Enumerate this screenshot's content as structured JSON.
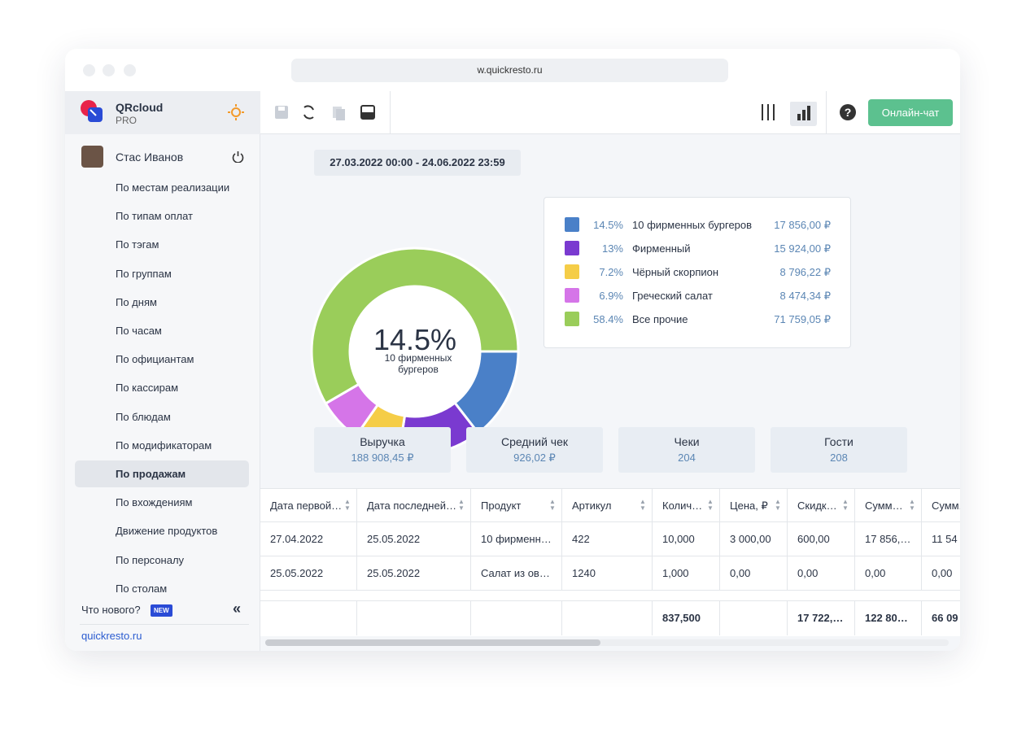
{
  "browser": {
    "url": "w.quickresto.ru"
  },
  "sidebar": {
    "brand": "QRcloud",
    "plan": "PRO",
    "user": "Стас Иванов",
    "menu": [
      "По местам реализации",
      "По типам оплат",
      "По тэгам",
      "По группам",
      "По дням",
      "По часам",
      "По официантам",
      "По кассирам",
      "По блюдам",
      "По модификаторам",
      "По продажам",
      "По вхождениям",
      "Движение продуктов",
      "По персоналу",
      "По столам"
    ],
    "active": 10,
    "whats_new": "Что нового?",
    "badge": "NEW",
    "link": "quickresto.ru"
  },
  "toolbar": {
    "chat_button": "Онлайн-чат"
  },
  "date_range": "27.03.2022 00:00 - 24.06.2022 23:59",
  "chart_data": {
    "type": "pie",
    "donut": true,
    "categories": [
      "10 фирменных бургеров",
      "Фирменный",
      "Чёрный скорпион",
      "Греческий салат",
      "Все прочие"
    ],
    "values": [
      14.5,
      13,
      7.2,
      6.9,
      58.4
    ],
    "value_labels": [
      "14.5%",
      "13%",
      "7.2%",
      "6.9%",
      "58.4%"
    ],
    "colors": [
      "#4a80c8",
      "#7a3ad0",
      "#f5cd47",
      "#d575e8",
      "#9acd5a"
    ],
    "amounts": [
      "17 856,00 ₽",
      "15 924,00 ₽",
      "8 796,22 ₽",
      "8 474,34 ₽",
      "71 759,05 ₽"
    ]
  },
  "kpis": [
    {
      "label": "Выручка",
      "value": "188 908,45 ₽"
    },
    {
      "label": "Средний чек",
      "value": "926,02 ₽"
    },
    {
      "label": "Чеки",
      "value": "204"
    },
    {
      "label": "Гости",
      "value": "208"
    }
  ],
  "table": {
    "columns": [
      "Дата первой…",
      "Дата последней…",
      "Продукт",
      "Артикул",
      "Колич…",
      "Цена, ₽",
      "Скидк…",
      "Сумм…",
      "Сумм."
    ],
    "rows": [
      [
        "27.04.2022",
        "25.05.2022",
        "10 фирменн…",
        "422",
        "10,000",
        "3 000,00",
        "600,00",
        "17 856,…",
        "11 54"
      ],
      [
        "25.05.2022",
        "25.05.2022",
        "Салат из ов…",
        "1240",
        "1,000",
        "0,00",
        "0,00",
        "0,00",
        "0,00"
      ]
    ],
    "totals": [
      null,
      null,
      null,
      null,
      "837,500",
      null,
      "17 722,…",
      "122 80…",
      "66 09"
    ]
  }
}
